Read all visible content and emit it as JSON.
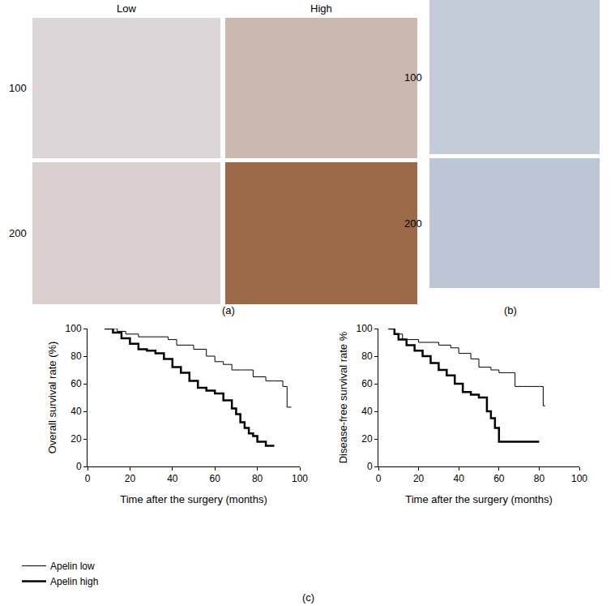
{
  "figure": {
    "panel_a": {
      "label": "(a)",
      "columns": [
        "Low",
        "High"
      ],
      "rows": [
        "100",
        "200"
      ]
    },
    "panel_b": {
      "label": "(b)",
      "rows": [
        "100",
        "200"
      ]
    },
    "panel_c": {
      "label": "(c)"
    }
  },
  "chart_data": [
    {
      "type": "line",
      "x_label": "Time after the surgery (months)",
      "y_label": "Overall survival rate (%)",
      "xlim": [
        0,
        100
      ],
      "ylim": [
        0,
        100
      ],
      "xticks": [
        0,
        20,
        40,
        60,
        80,
        100
      ],
      "yticks": [
        0,
        20,
        40,
        60,
        80,
        100
      ],
      "grid": false,
      "legend": "bottom left",
      "series": [
        {
          "name": "Apelin low",
          "color": "#000000",
          "line_style": "thin",
          "x": [
            8,
            14,
            18,
            24,
            38,
            42,
            50,
            56,
            60,
            64,
            68,
            72,
            78,
            84,
            88,
            92,
            94,
            96
          ],
          "values": [
            100,
            98,
            96,
            94,
            92,
            88,
            85,
            80,
            76,
            74,
            70,
            70,
            65,
            62,
            62,
            58,
            43,
            43
          ]
        },
        {
          "name": "Apelin high",
          "color": "#000000",
          "line_style": "bold",
          "x": [
            8,
            12,
            16,
            20,
            24,
            28,
            32,
            36,
            40,
            44,
            48,
            52,
            56,
            60,
            64,
            68,
            70,
            72,
            74,
            76,
            78,
            80,
            84,
            88
          ],
          "values": [
            100,
            97,
            93,
            89,
            85,
            84,
            82,
            78,
            72,
            68,
            62,
            57,
            55,
            53,
            48,
            42,
            38,
            32,
            28,
            24,
            22,
            18,
            15,
            15
          ]
        }
      ]
    },
    {
      "type": "line",
      "x_label": "Time after the surgery (months)",
      "y_label": "Disease-free survival rate %",
      "xlim": [
        0,
        100
      ],
      "ylim": [
        0,
        100
      ],
      "xticks": [
        0,
        20,
        40,
        60,
        80,
        100
      ],
      "yticks": [
        0,
        20,
        40,
        60,
        80,
        100
      ],
      "grid": false,
      "series": [
        {
          "name": "Apelin low",
          "color": "#000000",
          "line_style": "thin",
          "x": [
            5,
            8,
            12,
            20,
            30,
            36,
            40,
            46,
            50,
            56,
            60,
            64,
            68,
            72,
            76,
            80,
            82,
            83
          ],
          "values": [
            100,
            96,
            92,
            90,
            88,
            86,
            82,
            78,
            72,
            70,
            68,
            68,
            58,
            58,
            58,
            58,
            44,
            44
          ]
        },
        {
          "name": "Apelin high",
          "color": "#000000",
          "line_style": "bold",
          "x": [
            5,
            8,
            10,
            14,
            18,
            22,
            26,
            30,
            34,
            38,
            42,
            46,
            50,
            54,
            56,
            58,
            60,
            70,
            80
          ],
          "values": [
            100,
            96,
            92,
            88,
            84,
            80,
            75,
            70,
            66,
            60,
            54,
            52,
            50,
            40,
            35,
            28,
            18,
            18,
            18
          ]
        }
      ]
    }
  ]
}
